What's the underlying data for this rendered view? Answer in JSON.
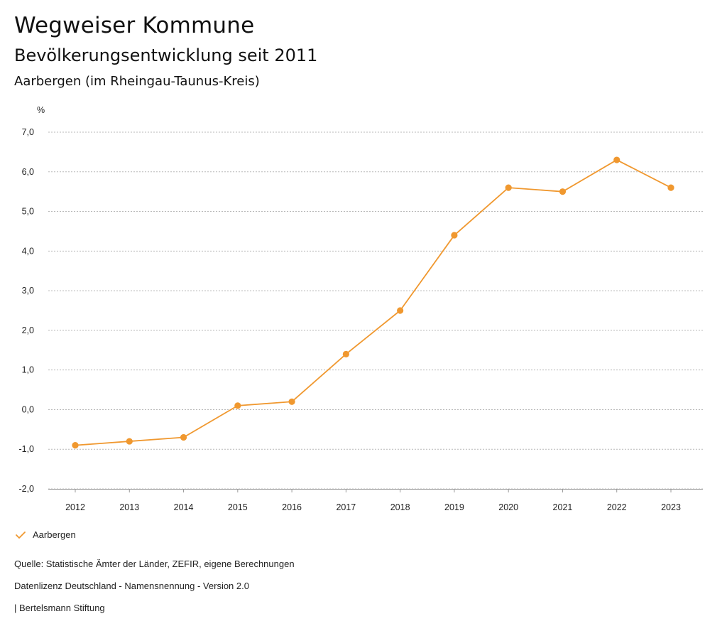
{
  "header": {
    "title": "Wegweiser Kommune",
    "subtitle": "Bevölkerungsentwicklung seit 2011",
    "region": "Aarbergen (im Rheingau-Taunus-Kreis)"
  },
  "chart_data": {
    "type": "line",
    "title": "Bevölkerungsentwicklung seit 2011",
    "ylabel": "%",
    "xlabel": "",
    "ylim": [
      -2.0,
      7.0
    ],
    "yticks": [
      "7,0",
      "6,0",
      "5,0",
      "4,0",
      "3,0",
      "2,0",
      "1,0",
      "0,0",
      "-1,0",
      "-2,0"
    ],
    "ytick_values": [
      7,
      6,
      5,
      4,
      3,
      2,
      1,
      0,
      -1,
      -2
    ],
    "categories": [
      "2012",
      "2013",
      "2014",
      "2015",
      "2016",
      "2017",
      "2018",
      "2019",
      "2020",
      "2021",
      "2022",
      "2023"
    ],
    "series": [
      {
        "name": "Aarbergen",
        "color": "#f0982f",
        "values": [
          -0.9,
          -0.8,
          -0.7,
          0.1,
          0.2,
          1.4,
          2.5,
          4.4,
          5.6,
          5.5,
          6.3,
          5.6
        ]
      }
    ],
    "grid": true,
    "legend": "bottom-left"
  },
  "footer": {
    "source": "Quelle: Statistische Ämter der Länder, ZEFIR, eigene Berechnungen",
    "license": "Datenlizenz Deutschland - Namensnennung - Version 2.0",
    "credit": "| Bertelsmann Stiftung"
  }
}
